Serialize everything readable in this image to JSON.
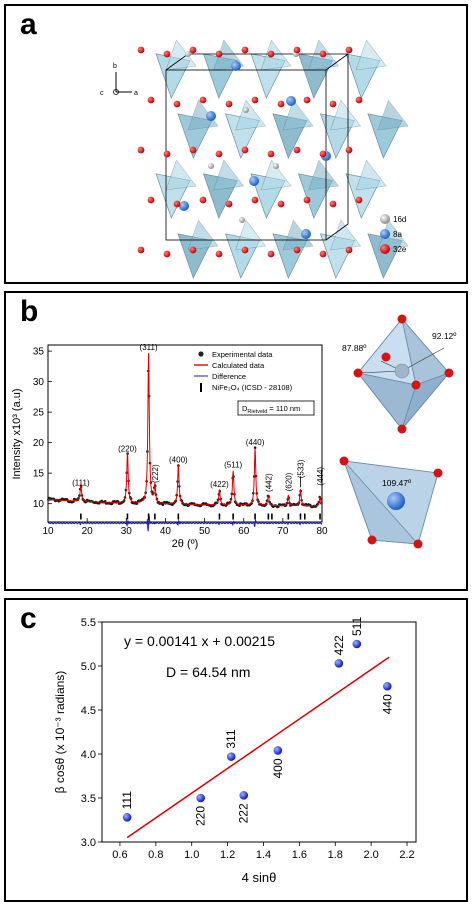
{
  "panel_a": {
    "label": "a",
    "axes": {
      "b": "b",
      "c": "c",
      "a": "a"
    },
    "legend": [
      {
        "label": "16d",
        "color": "#b8b8b8"
      },
      {
        "label": "8a",
        "color": "#2f6fd6"
      },
      {
        "label": "32e",
        "color": "#e01010"
      }
    ]
  },
  "panel_b_label": "b",
  "panel_c_label": "c",
  "octahedron": {
    "angle1": "87.88º",
    "angle2": "92.12º"
  },
  "tetrahedron": {
    "angle": "109.47º"
  },
  "chart_data": [
    {
      "type": "line",
      "xlabel": "2θ (º)",
      "ylabel": "Intensity x10³ (a.u)",
      "xlim": [
        10,
        80
      ],
      "ylim": [
        7,
        36
      ],
      "x_ticks": [
        10,
        20,
        30,
        40,
        50,
        60,
        70,
        80
      ],
      "y_ticks": [
        10,
        15,
        20,
        25,
        30,
        35
      ],
      "legend": [
        "Experimental data",
        "Calculated data",
        "Difference",
        "NiFe₂O₄ (ICSD - 28108)"
      ],
      "legend_position": "top-right",
      "annotation": "D",
      "annotation_sub": "Rietveld",
      "annotation_value": " = 110 nm",
      "baseline": 9.5,
      "background": 1.2,
      "difference_level": 6.8,
      "bragg_marks_y": 7.9,
      "peaks": [
        {
          "x": 18.4,
          "y": 12.2,
          "label": "(111)"
        },
        {
          "x": 30.3,
          "y": 17.7,
          "label": "(220)"
        },
        {
          "x": 35.7,
          "y": 34.2,
          "label": "(311)"
        },
        {
          "x": 37.3,
          "y": 12.4,
          "label": "(222)"
        },
        {
          "x": 43.3,
          "y": 15.9,
          "label": "(400)"
        },
        {
          "x": 53.8,
          "y": 11.9,
          "label": "(422)"
        },
        {
          "x": 57.3,
          "y": 15.1,
          "label": "(511)"
        },
        {
          "x": 62.9,
          "y": 18.8,
          "label": "(440)"
        },
        {
          "x": 66.3,
          "y": 11.1,
          "label": "(442)"
        },
        {
          "x": 71.4,
          "y": 11.2,
          "label": "(620)"
        },
        {
          "x": 74.5,
          "y": 12.2,
          "label": "(533)"
        },
        {
          "x": 79.5,
          "y": 11.0,
          "label": "(444)"
        }
      ],
      "bragg_positions": [
        18.4,
        30.3,
        35.7,
        37.3,
        43.3,
        53.8,
        57.3,
        62.9,
        66.3,
        67.2,
        71.4,
        74.5,
        75.6,
        79.5
      ]
    },
    {
      "type": "scatter",
      "xlabel": "4 sinθ",
      "ylabel": "β cosθ (x 10⁻³ radians)",
      "xlim": [
        0.5,
        2.25
      ],
      "ylim": [
        3.0,
        5.5
      ],
      "x_ticks": [
        0.6,
        0.8,
        1.0,
        1.2,
        1.4,
        1.6,
        1.8,
        2.0,
        2.2
      ],
      "y_ticks": [
        3.0,
        3.5,
        4.0,
        4.5,
        5.0,
        5.5
      ],
      "equation": "y = 0.00141 x + 0.00215",
      "size_label": "D = 64.54 nm",
      "fit_line": {
        "x": [
          0.64,
          2.1
        ],
        "y": [
          3.05,
          5.1
        ]
      },
      "points": [
        {
          "x": 0.64,
          "y": 3.28,
          "label": "111"
        },
        {
          "x": 1.05,
          "y": 3.5,
          "label": "220"
        },
        {
          "x": 1.22,
          "y": 3.97,
          "label": "311"
        },
        {
          "x": 1.29,
          "y": 3.53,
          "label": "222"
        },
        {
          "x": 1.48,
          "y": 4.04,
          "label": "400"
        },
        {
          "x": 1.82,
          "y": 5.03,
          "label": "422"
        },
        {
          "x": 1.92,
          "y": 5.25,
          "label": "511"
        },
        {
          "x": 2.09,
          "y": 4.77,
          "label": "440"
        }
      ]
    }
  ]
}
